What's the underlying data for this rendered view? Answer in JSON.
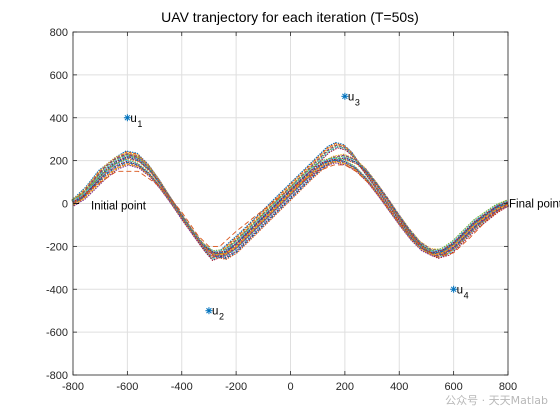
{
  "chart_data": {
    "type": "line",
    "title": "UAV tranjectory for each iteration (T=50s)",
    "xlabel": "",
    "ylabel": "",
    "xlim": [
      -800,
      800
    ],
    "ylim": [
      -800,
      800
    ],
    "xticks": [
      -800,
      -600,
      -400,
      -200,
      0,
      200,
      400,
      600,
      800
    ],
    "yticks": [
      -800,
      -600,
      -400,
      -200,
      0,
      200,
      400,
      600,
      800
    ],
    "grid": true,
    "ground_users": [
      {
        "label": "u",
        "sub": "1",
        "x": -600,
        "y": 400
      },
      {
        "label": "u",
        "sub": "2",
        "x": -300,
        "y": -500
      },
      {
        "label": "u",
        "sub": "3",
        "x": 200,
        "y": 500
      },
      {
        "label": "u",
        "sub": "4",
        "x": 600,
        "y": -400
      }
    ],
    "start_label": "Initial point",
    "end_label": "Final point",
    "start": {
      "x": -800,
      "y": 0
    },
    "end": {
      "x": 800,
      "y": 0
    },
    "series": [
      {
        "values_x": [
          -800,
          -750,
          -700,
          -640,
          -600,
          -560,
          -520,
          -480,
          -440,
          -400,
          -360,
          -320,
          -290,
          -260,
          -220,
          -180,
          -140,
          -100,
          -60,
          -20,
          20,
          60,
          100,
          140,
          170,
          200,
          230,
          260,
          300,
          340,
          380,
          420,
          460,
          500,
          540,
          580,
          600,
          640,
          680,
          720,
          760,
          800
        ],
        "values_y": [
          0,
          60,
          140,
          200,
          230,
          220,
          170,
          100,
          20,
          -60,
          -140,
          -210,
          -255,
          -240,
          -195,
          -150,
          -100,
          -50,
          0,
          50,
          100,
          150,
          200,
          250,
          270,
          260,
          225,
          170,
          100,
          30,
          -40,
          -110,
          -175,
          -220,
          -245,
          -230,
          -210,
          -160,
          -110,
          -70,
          -30,
          0
        ]
      },
      {
        "values_x": [
          -800,
          -760,
          -720,
          -680,
          -640,
          -600,
          -560,
          -520,
          -480,
          -440,
          -400,
          -360,
          -320,
          -280,
          -240,
          -200,
          -160,
          -120,
          -80,
          -40,
          0,
          40,
          80,
          120,
          160,
          200,
          240,
          280,
          320,
          360,
          400,
          440,
          480,
          520,
          560,
          600,
          640,
          680,
          720,
          760,
          800
        ],
        "values_y": [
          0,
          40,
          100,
          160,
          200,
          220,
          205,
          160,
          95,
          20,
          -55,
          -130,
          -195,
          -240,
          -250,
          -220,
          -170,
          -120,
          -70,
          -20,
          30,
          80,
          130,
          175,
          205,
          215,
          195,
          150,
          85,
          15,
          -60,
          -130,
          -190,
          -225,
          -230,
          -200,
          -150,
          -100,
          -60,
          -25,
          0
        ]
      },
      {
        "values_x": [
          -800,
          -760,
          -720,
          -680,
          -640,
          -600,
          -560,
          -520,
          -480,
          -440,
          -400,
          -360,
          -320,
          -280,
          -240,
          -200,
          -160,
          -120,
          -80,
          -40,
          0,
          40,
          80,
          120,
          160,
          200,
          240,
          280,
          320,
          360,
          400,
          440,
          480,
          520,
          560,
          600,
          640,
          680,
          720,
          760,
          800
        ],
        "values_y": [
          0,
          30,
          80,
          130,
          170,
          190,
          175,
          135,
          75,
          5,
          -70,
          -140,
          -200,
          -235,
          -230,
          -195,
          -145,
          -95,
          -45,
          5,
          55,
          105,
          150,
          185,
          200,
          190,
          160,
          110,
          45,
          -25,
          -95,
          -160,
          -210,
          -235,
          -225,
          -190,
          -140,
          -90,
          -55,
          -20,
          0
        ]
      },
      {
        "values_x": [
          -800,
          -720,
          -640,
          -560,
          -480,
          -400,
          -340,
          -300,
          -260,
          -200,
          -140,
          -80,
          -20,
          40,
          100,
          160,
          200,
          240,
          300,
          360,
          420,
          480,
          540,
          600,
          660,
          720,
          800
        ],
        "values_y": [
          0,
          80,
          150,
          150,
          80,
          -40,
          -150,
          -200,
          -200,
          -130,
          -70,
          -10,
          50,
          100,
          150,
          180,
          180,
          150,
          80,
          -20,
          -120,
          -200,
          -250,
          -230,
          -160,
          -80,
          0
        ]
      }
    ]
  },
  "watermark": "公众号 · 天天Matlab",
  "colors": {
    "grid": "#dfdfdf",
    "axis": "#262626",
    "marker": "#0072bd"
  }
}
